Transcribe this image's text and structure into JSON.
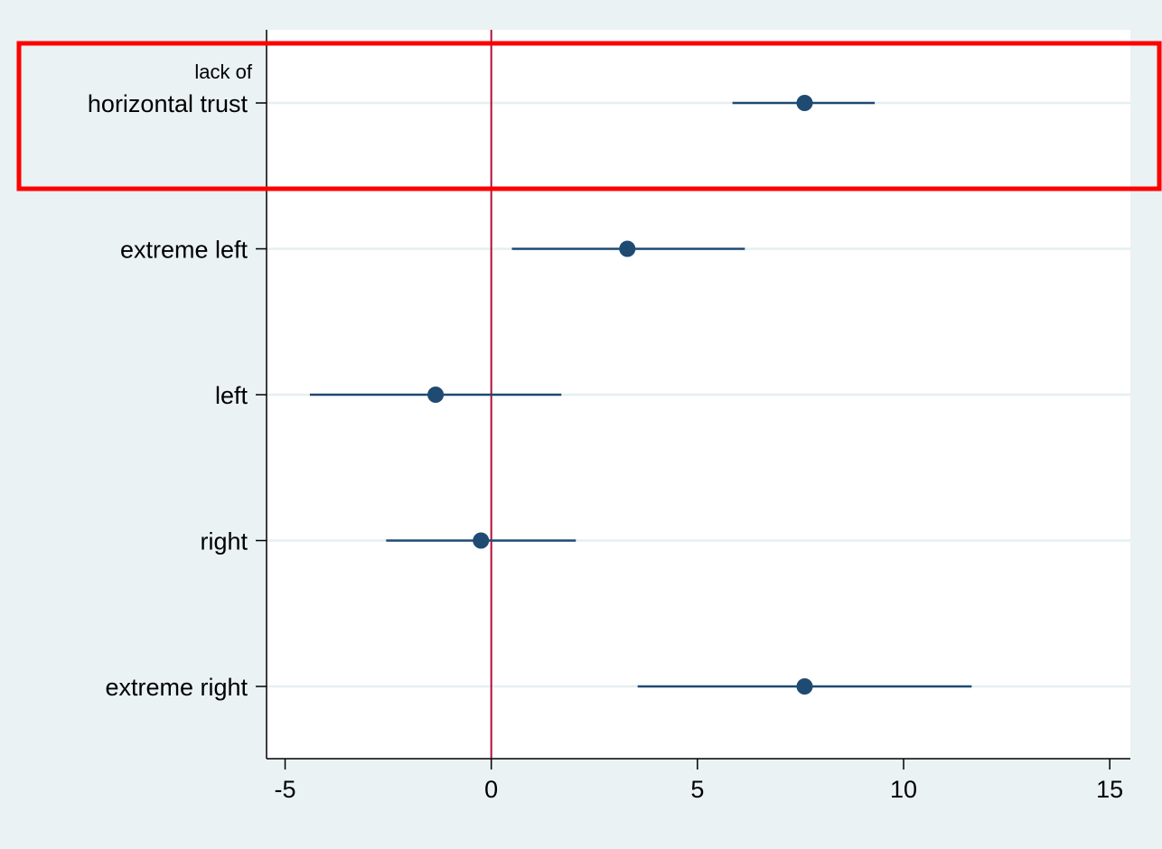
{
  "chart_data": {
    "type": "scatter",
    "subtype": "coefficient-plot-with-confidence-intervals",
    "orientation": "horizontal",
    "categories": [
      {
        "label_lines": [
          "lack of",
          "horizontal trust"
        ],
        "estimate": 7.6,
        "ci": [
          5.85,
          9.3
        ],
        "highlighted": true
      },
      {
        "label_lines": [
          "extreme left"
        ],
        "estimate": 3.3,
        "ci": [
          0.5,
          6.15
        ],
        "highlighted": false
      },
      {
        "label_lines": [
          "left"
        ],
        "estimate": -1.35,
        "ci": [
          -4.4,
          1.7
        ],
        "highlighted": false
      },
      {
        "label_lines": [
          "right"
        ],
        "estimate": -0.25,
        "ci": [
          -2.55,
          2.05
        ],
        "highlighted": false
      },
      {
        "label_lines": [
          "extreme right"
        ],
        "estimate": 7.6,
        "ci": [
          3.55,
          11.65
        ],
        "highlighted": false
      }
    ],
    "x_ticks": [
      "-5",
      "0",
      "5",
      "10",
      "15"
    ],
    "x_tick_values": [
      -5,
      0,
      5,
      10,
      15
    ],
    "xlim": [
      -5.45,
      15.5
    ],
    "reference_line": 0,
    "title": "",
    "xlabel": "",
    "ylabel": "",
    "grid": "horizontal",
    "legend": "none",
    "colors": {
      "background": "#eaf2f3",
      "plot_area": "#ffffff",
      "marker": "#1f4a72",
      "ci_line": "#1f4a72",
      "reference_line": "#b0103a",
      "grid": "#e6eff1",
      "highlight_box": "#ff0000",
      "axis": "#000000"
    }
  }
}
